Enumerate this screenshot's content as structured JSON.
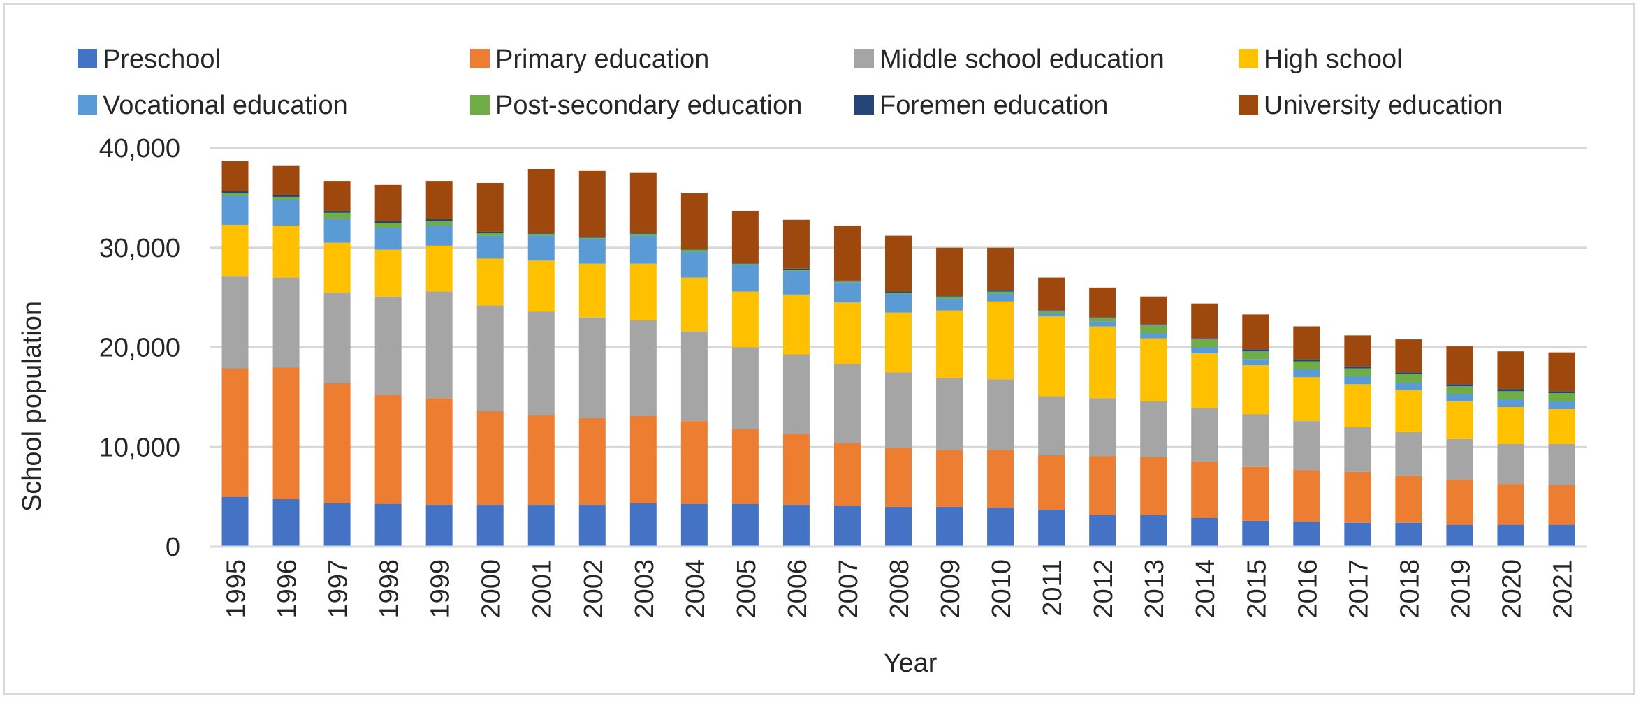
{
  "chart_data": {
    "type": "bar",
    "stacked": true,
    "title": "",
    "xlabel": "Year",
    "ylabel": "School population",
    "ylim": [
      0,
      40000
    ],
    "yticks": [
      0,
      10000,
      20000,
      30000,
      40000
    ],
    "ytick_labels": [
      "0",
      "10,000",
      "20,000",
      "30,000",
      "40,000"
    ],
    "grid": true,
    "legend_position": "top",
    "categories": [
      "1995",
      "1996",
      "1997",
      "1998",
      "1999",
      "2000",
      "2001",
      "2002",
      "2003",
      "2004",
      "2005",
      "2006",
      "2007",
      "2008",
      "2009",
      "2010",
      "2011",
      "2012",
      "2013",
      "2014",
      "2015",
      "2016",
      "2017",
      "2018",
      "2019",
      "2020",
      "2021"
    ],
    "series": [
      {
        "name": "Preschool",
        "color": "#4472c4",
        "values": [
          5000,
          4800,
          4400,
          4300,
          4200,
          4200,
          4200,
          4200,
          4400,
          4300,
          4300,
          4200,
          4100,
          4000,
          4000,
          3900,
          3700,
          3200,
          3200,
          2900,
          2600,
          2500,
          2400,
          2400,
          2200,
          2200,
          2200
        ]
      },
      {
        "name": "Primary education",
        "color": "#ed7d31",
        "values": [
          12900,
          13200,
          12000,
          10900,
          10700,
          9400,
          9000,
          8700,
          8700,
          8300,
          7500,
          7100,
          6300,
          5900,
          5700,
          5800,
          5500,
          5900,
          5800,
          5600,
          5400,
          5200,
          5100,
          4700,
          4500,
          4100,
          4000
        ]
      },
      {
        "name": "Middle school education",
        "color": "#a5a5a5",
        "values": [
          9200,
          9000,
          9100,
          9900,
          10700,
          10600,
          10400,
          10100,
          9600,
          9000,
          8200,
          8000,
          7900,
          7600,
          7200,
          7100,
          5900,
          5800,
          5600,
          5400,
          5300,
          4900,
          4500,
          4400,
          4100,
          4000,
          4100
        ]
      },
      {
        "name": "High school",
        "color": "#ffc000",
        "values": [
          5200,
          5200,
          5000,
          4700,
          4600,
          4700,
          5100,
          5400,
          5700,
          5400,
          5600,
          6000,
          6200,
          6000,
          6800,
          7800,
          8000,
          7200,
          6300,
          5500,
          4900,
          4400,
          4300,
          4200,
          3800,
          3700,
          3500
        ]
      },
      {
        "name": "Vocational education",
        "color": "#5b9bd5",
        "values": [
          2900,
          2600,
          2400,
          2200,
          2000,
          2300,
          2500,
          2500,
          2800,
          2600,
          2700,
          2400,
          2000,
          1900,
          1200,
          800,
          300,
          500,
          500,
          600,
          600,
          800,
          800,
          800,
          700,
          800,
          800
        ]
      },
      {
        "name": "Post-secondary education",
        "color": "#70ad47",
        "values": [
          300,
          300,
          600,
          500,
          500,
          300,
          200,
          100,
          200,
          200,
          100,
          100,
          100,
          100,
          200,
          200,
          200,
          300,
          800,
          800,
          800,
          800,
          800,
          800,
          800,
          800,
          800
        ]
      },
      {
        "name": "Foremen education",
        "color": "#264478",
        "values": [
          200,
          200,
          200,
          200,
          200,
          100,
          100,
          100,
          100,
          100,
          100,
          100,
          100,
          100,
          100,
          100,
          100,
          100,
          100,
          100,
          200,
          200,
          200,
          200,
          200,
          200,
          200
        ]
      },
      {
        "name": "University education",
        "color": "#9e480e",
        "values": [
          3000,
          2900,
          3000,
          3600,
          3800,
          4900,
          6400,
          6600,
          6000,
          5600,
          5200,
          4900,
          5500,
          5600,
          4800,
          4300,
          3300,
          3000,
          2800,
          3500,
          3500,
          3300,
          3100,
          3300,
          3800,
          3800,
          3900
        ]
      }
    ]
  }
}
